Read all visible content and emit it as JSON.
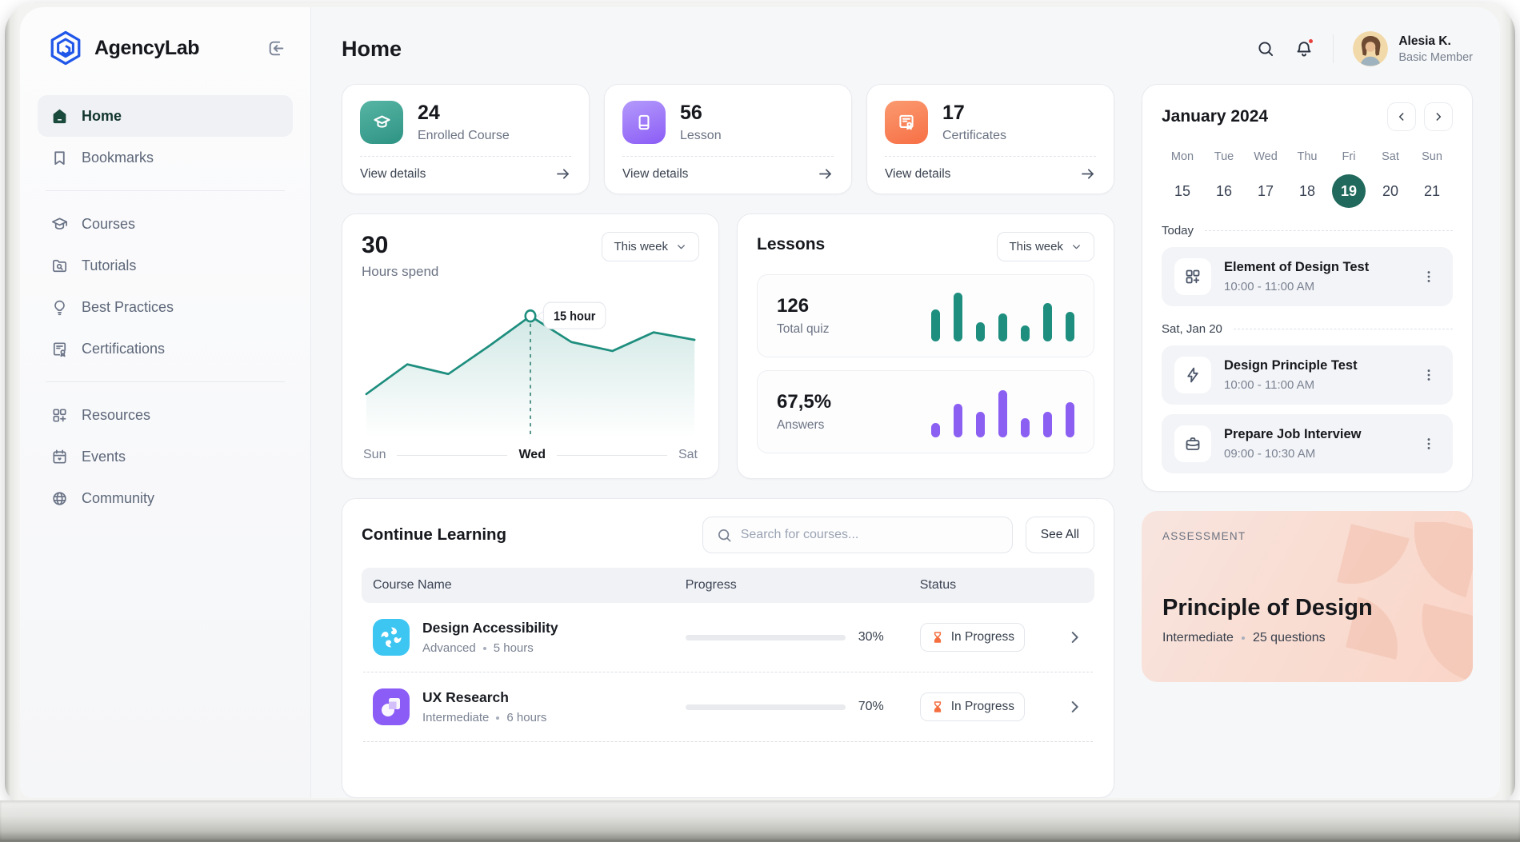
{
  "brand": {
    "name": "AgencyLab"
  },
  "header": {
    "title": "Home",
    "user_name": "Alesia K.",
    "user_role": "Basic Member"
  },
  "sidebar": {
    "items": [
      {
        "label": "Home"
      },
      {
        "label": "Bookmarks"
      },
      {
        "label": "Courses"
      },
      {
        "label": "Tutorials"
      },
      {
        "label": "Best Practices"
      },
      {
        "label": "Certifications"
      },
      {
        "label": "Resources"
      },
      {
        "label": "Events"
      },
      {
        "label": "Community"
      }
    ]
  },
  "stats": [
    {
      "value": "24",
      "label": "Enrolled Course",
      "link": "View details",
      "color": "#3BA08F"
    },
    {
      "value": "56",
      "label": "Lesson",
      "link": "View details",
      "color": "#9B7BF7"
    },
    {
      "value": "17",
      "label": "Certificates",
      "link": "View details",
      "color": "#F97C52"
    }
  ],
  "hours": {
    "value": "30",
    "label": "Hours spend",
    "filter": "This week",
    "tooltip": "15 hour",
    "axis": [
      "Sun",
      "Wed",
      "Sat"
    ],
    "chart": {
      "values": [
        4.5,
        8.5,
        7.2,
        11,
        15,
        11.5,
        10.3,
        12.8,
        11.8
      ],
      "marker_index": 4,
      "max": 16,
      "color": "#1E8E7E"
    }
  },
  "lessons": {
    "title": "Lessons",
    "filter": "This week",
    "quiz": {
      "value": "126",
      "label": "Total quiz",
      "bars": [
        62,
        95,
        38,
        55,
        32,
        75,
        58
      ],
      "color": "#1E8E7E"
    },
    "answers": {
      "value": "67,5%",
      "label": "Answers",
      "bars": [
        28,
        65,
        50,
        92,
        38,
        50,
        68
      ],
      "color": "#8B5FF2"
    }
  },
  "continue_learning": {
    "title": "Continue Learning",
    "search_placeholder": "Search for courses...",
    "see_all": "See All",
    "columns": [
      "Course Name",
      "Progress",
      "Status"
    ],
    "rows": [
      {
        "name": "Design Accessibility",
        "level": "Advanced",
        "duration": "5 hours",
        "progress": 30,
        "progress_label": "30%",
        "status": "In Progress"
      },
      {
        "name": "UX Research",
        "level": "Intermediate",
        "duration": "6 hours",
        "progress": 70,
        "progress_label": "70%",
        "status": "In Progress"
      }
    ]
  },
  "calendar": {
    "month": "January 2024",
    "days": [
      "Mon",
      "Tue",
      "Wed",
      "Thu",
      "Fri",
      "Sat",
      "Sun"
    ],
    "dates": [
      "15",
      "16",
      "17",
      "18",
      "19",
      "20",
      "21"
    ],
    "selected_date": "19"
  },
  "schedule": {
    "sections": [
      {
        "label": "Today",
        "events": [
          {
            "title": "Element of Design Test",
            "time": "10:00 - 11:00 AM",
            "icon": "grid-plus-icon"
          }
        ]
      },
      {
        "label": "Sat, Jan 20",
        "events": [
          {
            "title": "Design Principle Test",
            "time": "10:00 - 11:00 AM",
            "icon": "lightning-icon"
          },
          {
            "title": "Prepare Job Interview",
            "time": "09:00 - 10:30 AM",
            "icon": "briefcase-icon"
          }
        ]
      }
    ]
  },
  "assessment": {
    "eyebrow": "ASSESSMENT",
    "title": "Principle of Design",
    "level": "Intermediate",
    "questions": "25 questions"
  },
  "chart_data": [
    {
      "type": "line",
      "title": "Hours spend — 30 (This week)",
      "x": [
        "Sun",
        "",
        "",
        "",
        "Wed",
        "",
        "",
        "",
        "Sat"
      ],
      "values": [
        4.5,
        8.5,
        7.2,
        11,
        15,
        11.5,
        10.3,
        12.8,
        11.8
      ],
      "annotation": "15 hour at Wed",
      "ylim": [
        0,
        16
      ],
      "legend": "none",
      "grid": false
    },
    {
      "type": "bar",
      "title": "Total quiz — 126 (This week)",
      "values_relative_pct": [
        62,
        95,
        38,
        55,
        32,
        75,
        58
      ]
    },
    {
      "type": "bar",
      "title": "Answers — 67,5% (This week)",
      "values_relative_pct": [
        28,
        65,
        50,
        92,
        38,
        50,
        68
      ]
    }
  ]
}
